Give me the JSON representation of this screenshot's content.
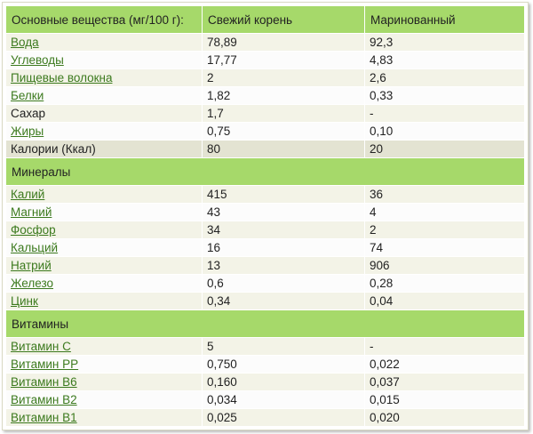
{
  "table": {
    "headers": [
      "Основные вещества (мг/100 г):",
      "Свежий корень",
      "Маринованный"
    ],
    "basic": [
      {
        "name": "Вода",
        "link": true,
        "fresh": "78,89",
        "pickled": "92,3"
      },
      {
        "name": "Углеводы",
        "link": true,
        "fresh": "17,77",
        "pickled": "4,83"
      },
      {
        "name": "Пищевые волокна",
        "link": true,
        "fresh": "2",
        "pickled": "2,6"
      },
      {
        "name": "Белки",
        "link": true,
        "fresh": "1,82",
        "pickled": "0,33"
      },
      {
        "name": "Сахар",
        "link": false,
        "fresh": "1,7",
        "pickled": "-"
      },
      {
        "name": "Жиры",
        "link": true,
        "fresh": "0,75",
        "pickled": "0,10"
      },
      {
        "name": "Калории (Ккал)",
        "link": false,
        "fresh": "80",
        "pickled": "20"
      }
    ],
    "minerals_label": "Минералы",
    "minerals": [
      {
        "name": "Калий",
        "link": true,
        "fresh": "415",
        "pickled": "36"
      },
      {
        "name": "Магний",
        "link": true,
        "fresh": "43",
        "pickled": "4"
      },
      {
        "name": "Фосфор",
        "link": true,
        "fresh": "34",
        "pickled": "2"
      },
      {
        "name": "Кальций",
        "link": true,
        "fresh": "16",
        "pickled": "74"
      },
      {
        "name": "Натрий",
        "link": true,
        "fresh": "13",
        "pickled": "906"
      },
      {
        "name": "Железо",
        "link": true,
        "fresh": "0,6",
        "pickled": "0,28"
      },
      {
        "name": "Цинк",
        "link": true,
        "fresh": "0,34",
        "pickled": "0,04"
      }
    ],
    "vitamins_label": "Витамины",
    "vitamins": [
      {
        "name": "Витамин С",
        "link": true,
        "fresh": "5",
        "pickled": "-"
      },
      {
        "name": "Витамин РР",
        "link": true,
        "fresh": "0,750",
        "pickled": "0,022"
      },
      {
        "name": "Витамин В6",
        "link": true,
        "fresh": "0,160",
        "pickled": "0,037"
      },
      {
        "name": "Витамин В2",
        "link": true,
        "fresh": "0,034",
        "pickled": "0,015"
      },
      {
        "name": "Витамин В1",
        "link": true,
        "fresh": "0,025",
        "pickled": "0,020"
      }
    ]
  },
  "colors": {
    "header_bg": "#a6d96a",
    "row_odd": "#f3f3e7",
    "row_even": "#fcfcfc",
    "calorie_row": "#e3e3d2",
    "link": "#3c7a1e"
  }
}
